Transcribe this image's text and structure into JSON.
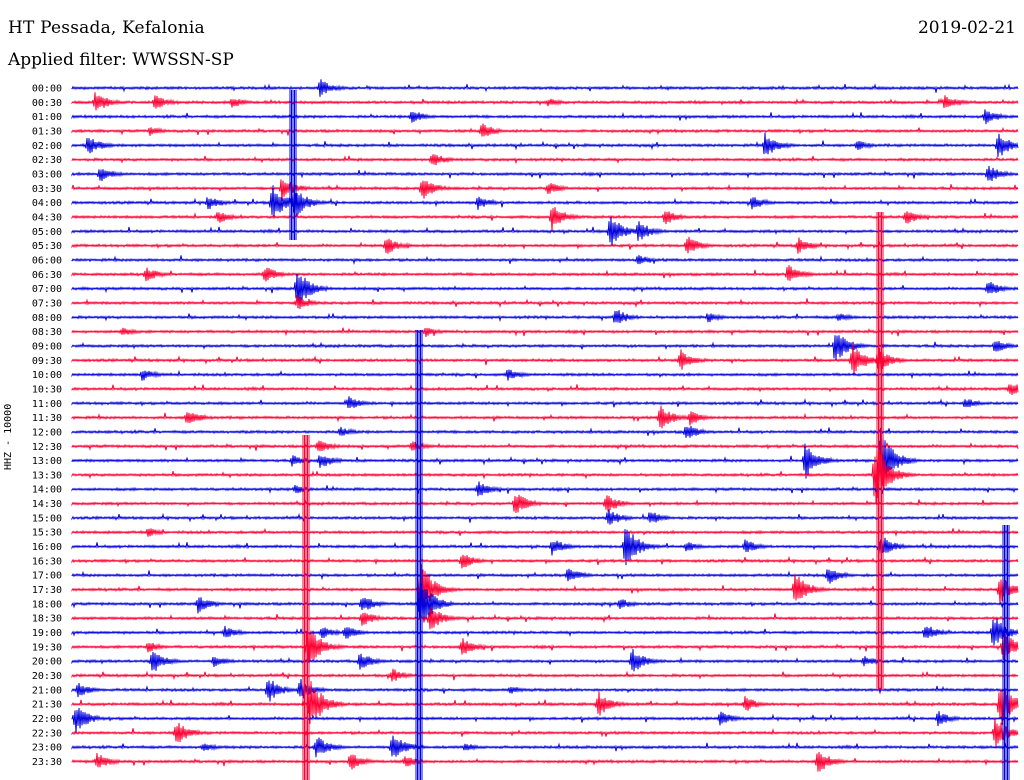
{
  "header": {
    "station": "HT Pessada, Kefalonia",
    "date": "2019-02-21",
    "filter": "Applied filter: WWSSN-SP"
  },
  "chart_data": {
    "type": "line",
    "title": "HT Pessada, Kefalonia",
    "ylabel": "HHZ - 10000",
    "colors": [
      "#0000dd",
      "#ff0033"
    ],
    "row_labels": [
      "00:00",
      "00:30",
      "01:00",
      "01:30",
      "02:00",
      "02:30",
      "03:00",
      "03:30",
      "04:00",
      "04:30",
      "05:00",
      "05:30",
      "06:00",
      "06:30",
      "07:00",
      "07:30",
      "08:00",
      "08:30",
      "09:00",
      "09:30",
      "10:00",
      "10:30",
      "11:00",
      "11:30",
      "12:00",
      "12:30",
      "13:00",
      "13:30",
      "14:00",
      "14:30",
      "15:00",
      "15:30",
      "16:00",
      "16:30",
      "17:00",
      "17:30",
      "18:00",
      "18:30",
      "19:00",
      "19:30",
      "20:00",
      "20:30",
      "21:00",
      "21:30",
      "22:00",
      "22:30",
      "23:00",
      "23:30"
    ],
    "events": [
      [
        0,
        320,
        10
      ],
      [
        1,
        95,
        12
      ],
      [
        1,
        155,
        8
      ],
      [
        1,
        232,
        6
      ],
      [
        1,
        548,
        5
      ],
      [
        1,
        945,
        9
      ],
      [
        2,
        412,
        8
      ],
      [
        2,
        985,
        9
      ],
      [
        3,
        482,
        9
      ],
      [
        3,
        150,
        5
      ],
      [
        4,
        88,
        11
      ],
      [
        4,
        765,
        14
      ],
      [
        4,
        998,
        14
      ],
      [
        4,
        857,
        6
      ],
      [
        5,
        432,
        8
      ],
      [
        6,
        100,
        9
      ],
      [
        6,
        988,
        10
      ],
      [
        7,
        282,
        14
      ],
      [
        7,
        422,
        13
      ],
      [
        7,
        548,
        7
      ],
      [
        8,
        272,
        20
      ],
      [
        8,
        294,
        18
      ],
      [
        8,
        208,
        8
      ],
      [
        8,
        478,
        8
      ],
      [
        8,
        752,
        8
      ],
      [
        9,
        218,
        7
      ],
      [
        9,
        552,
        14
      ],
      [
        9,
        665,
        9
      ],
      [
        9,
        906,
        9
      ],
      [
        10,
        610,
        18
      ],
      [
        10,
        638,
        12
      ],
      [
        11,
        386,
        10
      ],
      [
        11,
        687,
        11
      ],
      [
        11,
        798,
        9
      ],
      [
        12,
        638,
        6
      ],
      [
        13,
        146,
        8
      ],
      [
        13,
        265,
        9
      ],
      [
        13,
        788,
        11
      ],
      [
        14,
        297,
        22
      ],
      [
        14,
        988,
        9
      ],
      [
        15,
        297,
        8
      ],
      [
        16,
        615,
        10
      ],
      [
        16,
        708,
        6
      ],
      [
        16,
        838,
        5
      ],
      [
        17,
        122,
        5
      ],
      [
        17,
        425,
        6
      ],
      [
        18,
        835,
        20
      ],
      [
        18,
        995,
        8
      ],
      [
        19,
        680,
        12
      ],
      [
        19,
        852,
        18
      ],
      [
        19,
        878,
        14
      ],
      [
        20,
        142,
        7
      ],
      [
        20,
        508,
        7
      ],
      [
        21,
        1010,
        8
      ],
      [
        22,
        348,
        8
      ],
      [
        22,
        965,
        6
      ],
      [
        23,
        187,
        10
      ],
      [
        23,
        660,
        14
      ],
      [
        23,
        690,
        8
      ],
      [
        24,
        686,
        9
      ],
      [
        24,
        340,
        6
      ],
      [
        25,
        318,
        8
      ],
      [
        25,
        412,
        6
      ],
      [
        26,
        320,
        9
      ],
      [
        26,
        292,
        6
      ],
      [
        26,
        805,
        20
      ],
      [
        26,
        880,
        36
      ],
      [
        27,
        875,
        36
      ],
      [
        27,
        880,
        20
      ],
      [
        28,
        478,
        9
      ],
      [
        28,
        295,
        5
      ],
      [
        29,
        515,
        13
      ],
      [
        29,
        606,
        11
      ],
      [
        30,
        608,
        10
      ],
      [
        30,
        650,
        8
      ],
      [
        30,
        610,
        6
      ],
      [
        31,
        148,
        5
      ],
      [
        32,
        625,
        24
      ],
      [
        32,
        552,
        9
      ],
      [
        32,
        686,
        6
      ],
      [
        32,
        745,
        8
      ],
      [
        32,
        880,
        14
      ],
      [
        33,
        462,
        9
      ],
      [
        34,
        568,
        9
      ],
      [
        34,
        828,
        10
      ],
      [
        35,
        795,
        18
      ],
      [
        35,
        420,
        30
      ],
      [
        35,
        1000,
        16
      ],
      [
        36,
        198,
        10
      ],
      [
        36,
        362,
        10
      ],
      [
        36,
        420,
        30
      ],
      [
        36,
        620,
        6
      ],
      [
        37,
        362,
        9
      ],
      [
        37,
        430,
        14
      ],
      [
        38,
        225,
        7
      ],
      [
        38,
        322,
        7
      ],
      [
        38,
        345,
        8
      ],
      [
        38,
        925,
        10
      ],
      [
        38,
        993,
        20
      ],
      [
        39,
        148,
        6
      ],
      [
        39,
        308,
        24
      ],
      [
        39,
        462,
        10
      ],
      [
        39,
        1003,
        18
      ],
      [
        40,
        152,
        14
      ],
      [
        40,
        214,
        7
      ],
      [
        40,
        360,
        10
      ],
      [
        40,
        632,
        14
      ],
      [
        40,
        864,
        6
      ],
      [
        41,
        392,
        8
      ],
      [
        42,
        78,
        8
      ],
      [
        42,
        268,
        14
      ],
      [
        42,
        300,
        12
      ],
      [
        42,
        510,
        5
      ],
      [
        43,
        310,
        28
      ],
      [
        43,
        598,
        14
      ],
      [
        43,
        745,
        9
      ],
      [
        43,
        1000,
        26
      ],
      [
        44,
        75,
        16
      ],
      [
        44,
        720,
        8
      ],
      [
        44,
        938,
        8
      ],
      [
        45,
        176,
        14
      ],
      [
        45,
        995,
        18
      ],
      [
        46,
        316,
        13
      ],
      [
        46,
        392,
        16
      ],
      [
        46,
        203,
        5
      ],
      [
        46,
        465,
        5
      ],
      [
        47,
        97,
        9
      ],
      [
        47,
        350,
        10
      ],
      [
        47,
        818,
        13
      ],
      [
        47,
        405,
        7
      ]
    ],
    "spikes": [
      [
        293,
        90,
        240
      ],
      [
        880,
        212,
        690
      ],
      [
        419,
        330,
        780
      ],
      [
        306,
        435,
        780
      ],
      [
        1006,
        525,
        780
      ]
    ]
  }
}
